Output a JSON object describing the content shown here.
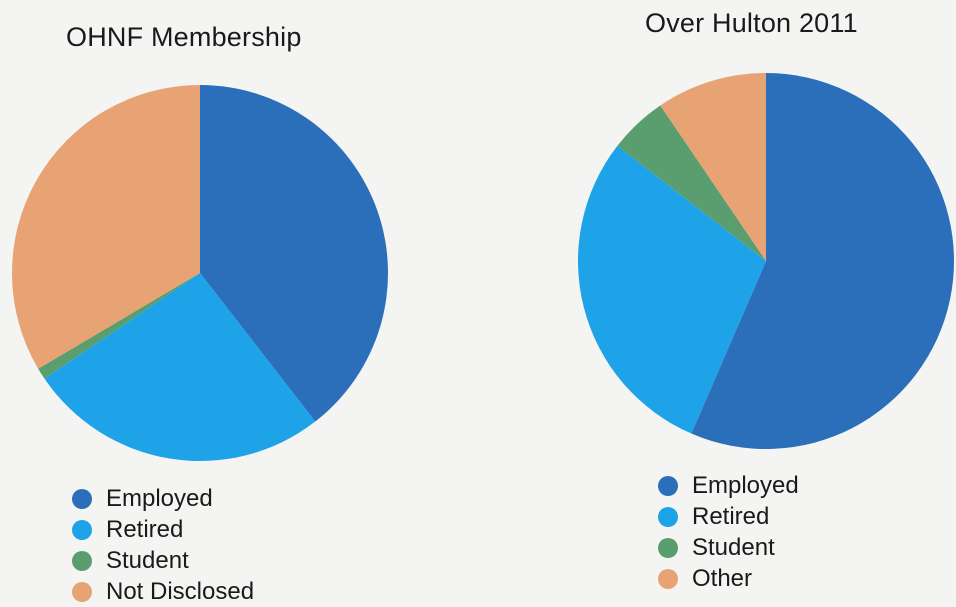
{
  "chart_data": [
    {
      "type": "pie",
      "title": "OHNF Membership",
      "legend_placement": "bottom",
      "slices": [
        {
          "label": "Employed",
          "value": 39.5,
          "color": "#2b6fba"
        },
        {
          "label": "Retired",
          "value": 26.0,
          "color": "#1ea3e8"
        },
        {
          "label": "Student",
          "value": 1.0,
          "color": "#5a9e6f"
        },
        {
          "label": "Not Disclosed",
          "value": 33.5,
          "color": "#e8a374"
        }
      ]
    },
    {
      "type": "pie",
      "title": "Over Hulton 2011",
      "legend_placement": "bottom",
      "slices": [
        {
          "label": "Employed",
          "value": 56.5,
          "color": "#2b6fba"
        },
        {
          "label": "Retired",
          "value": 29.0,
          "color": "#1ea3e8"
        },
        {
          "label": "Student",
          "value": 5.0,
          "color": "#5a9e6f"
        },
        {
          "label": "Other",
          "value": 9.5,
          "color": "#e8a374"
        }
      ]
    }
  ]
}
